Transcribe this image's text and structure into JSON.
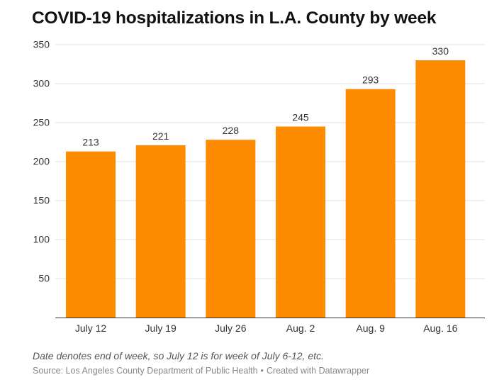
{
  "title": "COVID-19 hospitalizations in L.A. County by week",
  "note": "Date denotes end of week, so July 12 is for week of July 6-12, etc.",
  "source": {
    "label": "Source: Los Angeles County Department of Public Health",
    "separator": "•",
    "credit": "Created with Datawrapper"
  },
  "colors": {
    "bar": "#FF8C00",
    "grid": "#e0e0e0",
    "axis": "#333333"
  },
  "chart_data": {
    "type": "bar",
    "title": "COVID-19 hospitalizations in L.A. County by week",
    "xlabel": "",
    "ylabel": "",
    "categories": [
      "July 12",
      "July 19",
      "July 26",
      "Aug. 2",
      "Aug. 9",
      "Aug. 16"
    ],
    "values": [
      213,
      221,
      228,
      245,
      293,
      330
    ],
    "ylim": [
      0,
      350
    ],
    "yticks": [
      50,
      100,
      150,
      200,
      250,
      300,
      350
    ],
    "grid": true,
    "data_labels": true
  }
}
